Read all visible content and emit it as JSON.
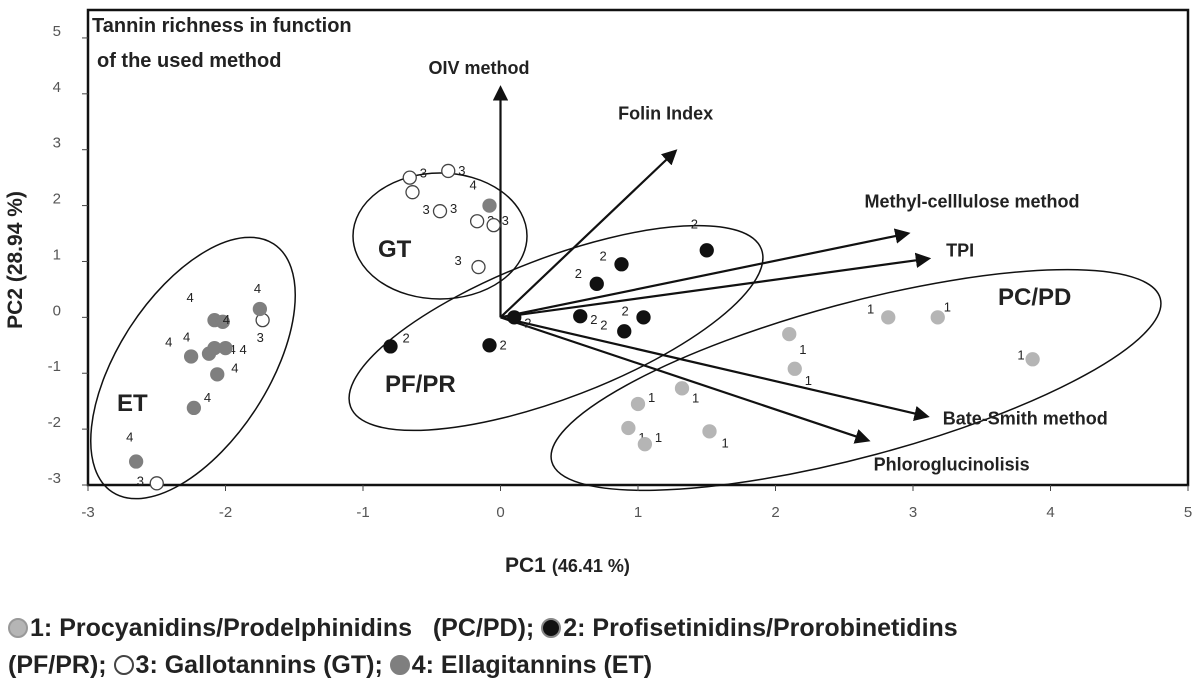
{
  "chart_data": {
    "type": "scatter",
    "title": "Tannin richness in function of the used method",
    "title_lines": [
      "Tannin richness in function",
      "of the used method"
    ],
    "xlabel": "PC1",
    "xlabel_pct": "(46.41 %)",
    "ylabel": "PC2 (28.94 %)",
    "xlim": [
      -3,
      5
    ],
    "ylim": [
      -3,
      5.5
    ],
    "xticks": [
      -3,
      -2,
      -1,
      0,
      1,
      2,
      3,
      4,
      5
    ],
    "yticks": [
      -3,
      -2,
      -1,
      0,
      1,
      2,
      3,
      4,
      5
    ],
    "grid": false,
    "series": [
      {
        "name": "Procyanidins/Prodelphinidins (PC/PD)",
        "label": "1",
        "fill": "#b5b5b5",
        "stroke": "#b5b5b5",
        "points": [
          {
            "x": 2.82,
            "y": 0.0
          },
          {
            "x": 3.18,
            "y": 0.0
          },
          {
            "x": 2.1,
            "y": -0.3
          },
          {
            "x": 2.14,
            "y": -0.92
          },
          {
            "x": 3.87,
            "y": -0.75
          },
          {
            "x": 1.0,
            "y": -1.55
          },
          {
            "x": 0.93,
            "y": -1.98
          },
          {
            "x": 1.05,
            "y": -2.27
          },
          {
            "x": 1.32,
            "y": -1.27
          },
          {
            "x": 1.52,
            "y": -2.04
          }
        ]
      },
      {
        "name": "Profisetinidins/Prorobinetidins (PF/PR)",
        "label": "2",
        "fill": "#111111",
        "stroke": "#111111",
        "points": [
          {
            "x": 1.5,
            "y": 1.2
          },
          {
            "x": 0.88,
            "y": 0.95
          },
          {
            "x": 0.7,
            "y": 0.6
          },
          {
            "x": 0.1,
            "y": 0.0
          },
          {
            "x": 0.58,
            "y": 0.02
          },
          {
            "x": 1.04,
            "y": 0.0
          },
          {
            "x": 0.9,
            "y": -0.25
          },
          {
            "x": -0.8,
            "y": -0.52
          },
          {
            "x": -0.08,
            "y": -0.5
          }
        ]
      },
      {
        "name": "Gallotannins (GT)",
        "label": "3",
        "fill": "#ffffff",
        "stroke": "#444444",
        "points": [
          {
            "x": -0.38,
            "y": 2.62
          },
          {
            "x": -0.66,
            "y": 2.5
          },
          {
            "x": -0.64,
            "y": 2.24
          },
          {
            "x": -0.44,
            "y": 1.9
          },
          {
            "x": -0.17,
            "y": 1.72
          },
          {
            "x": -0.05,
            "y": 1.65
          },
          {
            "x": -0.16,
            "y": 0.9
          },
          {
            "x": -1.73,
            "y": -0.05
          },
          {
            "x": -2.5,
            "y": -2.97
          }
        ]
      },
      {
        "name": "Ellagitannins (ET)",
        "label": "4",
        "fill": "#7f7f7f",
        "stroke": "#7f7f7f",
        "points": [
          {
            "x": -0.08,
            "y": 2.0
          },
          {
            "x": -1.75,
            "y": 0.15
          },
          {
            "x": -2.08,
            "y": -0.05
          },
          {
            "x": -2.02,
            "y": -0.08
          },
          {
            "x": -2.25,
            "y": -0.7
          },
          {
            "x": -2.12,
            "y": -0.65
          },
          {
            "x": -2.08,
            "y": -0.55
          },
          {
            "x": -2.0,
            "y": -0.55
          },
          {
            "x": -2.06,
            "y": -1.02
          },
          {
            "x": -2.23,
            "y": -1.62
          },
          {
            "x": -2.65,
            "y": -2.58
          }
        ]
      }
    ],
    "vectors": [
      {
        "name": "OIV method",
        "x": 0.0,
        "y": 4.1
      },
      {
        "name": "Folin Index",
        "x": 1.27,
        "y": 2.97
      },
      {
        "name": "Methyl-celllulose method",
        "x": 2.96,
        "y": 1.5
      },
      {
        "name": "TPI",
        "x": 3.11,
        "y": 1.05
      },
      {
        "name": "Bate-Smith method",
        "x": 3.1,
        "y": -1.77
      },
      {
        "name": "Phloroglucinolisis",
        "x": 2.67,
        "y": -2.2
      }
    ],
    "groups": [
      {
        "name": "GT"
      },
      {
        "name": "ET"
      },
      {
        "name": "PF/PR"
      },
      {
        "name": "PC/PD"
      }
    ]
  },
  "legend": {
    "items": [
      {
        "num": "1:",
        "text": "Procyanidins/Prodelphinidins   (PC/PD);",
        "color": "#b5b5b5"
      },
      {
        "num": "2:",
        "text": "Profisetinidins/Prorobinetidins",
        "color": "#111111"
      },
      {
        "num": "3:",
        "text": "(PF/PR); ",
        "color": null
      },
      {
        "num": "3:",
        "text": "Gallotannins (GT);",
        "color": "#ffffff"
      },
      {
        "num": "4:",
        "text": "Ellagitannins (ET)",
        "color": "#7f7f7f"
      }
    ]
  }
}
